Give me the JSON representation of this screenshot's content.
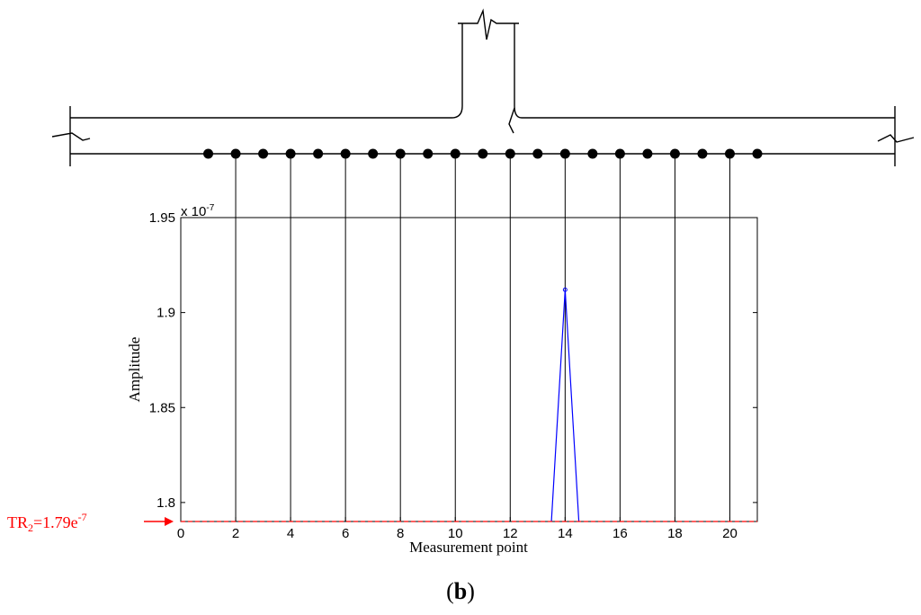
{
  "chart_data": {
    "type": "line",
    "xlabel": "Measurement point",
    "ylabel": "Amplitude",
    "y_exponent_label": "x 10",
    "y_exponent_power": "-7",
    "xlim": [
      0,
      21
    ],
    "ylim": [
      1.79,
      1.95
    ],
    "x_ticks": [
      0,
      2,
      4,
      6,
      8,
      10,
      12,
      14,
      16,
      18,
      20
    ],
    "x_tick_labels": [
      "0",
      "2",
      "4",
      "6",
      "8",
      "10",
      "12",
      "14",
      "16",
      "18",
      "20"
    ],
    "y_ticks": [
      1.8,
      1.85,
      1.9,
      1.95
    ],
    "y_tick_labels": [
      "1.8",
      "1.85",
      "1.9",
      "1.95"
    ],
    "series": [
      {
        "x": [
          13.5,
          14,
          14.5
        ],
        "y": [
          1.79,
          1.912,
          1.79
        ],
        "color": "#0000ff"
      }
    ],
    "threshold": {
      "value": 1.79,
      "label_prefix": "TR",
      "label_subscript": "2",
      "label_suffix": "=1.79e",
      "label_power": "-7",
      "color": "#ff0000"
    },
    "measurement_points": [
      1,
      2,
      3,
      4,
      5,
      6,
      7,
      8,
      9,
      10,
      11,
      12,
      13,
      14,
      15,
      16,
      17,
      18,
      19,
      20,
      21
    ],
    "vertical_gridlines_at": [
      2,
      4,
      6,
      8,
      10,
      12,
      14,
      16,
      18,
      20
    ]
  },
  "caption": {
    "open": "(",
    "letter": "b",
    "close": ")"
  }
}
